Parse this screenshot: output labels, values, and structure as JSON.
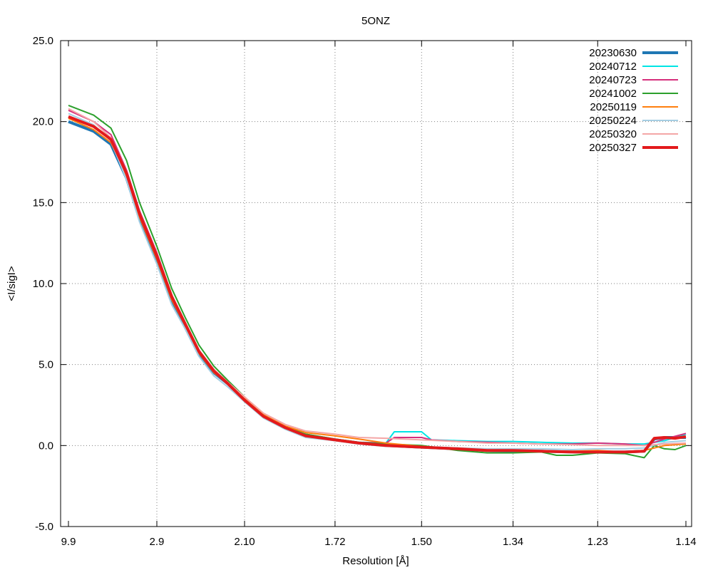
{
  "chart_data": {
    "type": "line",
    "title": "5ONZ",
    "xlabel": "Resolution [Å]",
    "ylabel": "<I/sigI>",
    "ylim": [
      -5.0,
      25.0
    ],
    "y_ticks": [
      "-5.0",
      "0.0",
      "5.0",
      "10.0",
      "15.0",
      "20.0",
      "25.0"
    ],
    "x_scale": "inverse-square resolution",
    "x_ticks": [
      "9.9",
      "2.9",
      "2.10",
      "1.72",
      "1.50",
      "1.34",
      "1.23",
      "1.14"
    ],
    "grid": true,
    "legend_position": "top-right",
    "series": [
      {
        "name": "20230630",
        "color": "#1f77b4",
        "width": 4,
        "x": [
          9.9,
          4.93,
          4.0,
          3.5,
          3.2,
          2.9,
          2.7,
          2.55,
          2.42,
          2.3,
          2.2,
          2.1,
          2.0,
          1.9,
          1.82,
          1.72,
          1.65,
          1.58,
          1.5,
          1.43,
          1.38,
          1.34,
          1.3,
          1.26,
          1.23,
          1.2,
          1.18,
          1.17,
          1.16,
          1.14
        ],
        "y": [
          20.0,
          19.4,
          18.6,
          16.5,
          14.0,
          11.5,
          9.0,
          7.3,
          5.6,
          4.5,
          3.8,
          2.8,
          1.8,
          1.1,
          0.6,
          0.35,
          0.15,
          0.0,
          -0.1,
          -0.2,
          -0.3,
          -0.35,
          -0.35,
          -0.4,
          -0.4,
          -0.4,
          -0.35,
          0.4,
          0.5,
          0.5
        ]
      },
      {
        "name": "20240712",
        "color": "#00e5e5",
        "width": 2,
        "x": [
          9.9,
          4.93,
          4.0,
          3.5,
          3.2,
          2.9,
          2.7,
          2.55,
          2.42,
          2.3,
          2.2,
          2.1,
          2.0,
          1.9,
          1.82,
          1.72,
          1.65,
          1.58,
          1.56,
          1.54,
          1.5,
          1.48,
          1.43,
          1.38,
          1.34,
          1.3,
          1.26,
          1.23,
          1.2,
          1.18,
          1.16,
          1.14
        ],
        "y": [
          20.3,
          19.7,
          18.9,
          16.7,
          14.2,
          11.6,
          9.1,
          7.4,
          5.7,
          4.5,
          3.8,
          2.8,
          1.8,
          1.1,
          0.6,
          0.4,
          0.2,
          0.15,
          0.85,
          0.85,
          0.85,
          0.35,
          0.3,
          0.25,
          0.25,
          0.2,
          0.15,
          0.15,
          0.1,
          0.1,
          0.3,
          0.7
        ]
      },
      {
        "name": "20240723",
        "color": "#d62f7c",
        "width": 2,
        "x": [
          9.9,
          4.93,
          4.0,
          3.5,
          3.2,
          2.9,
          2.7,
          2.55,
          2.42,
          2.3,
          2.2,
          2.1,
          2.0,
          1.9,
          1.82,
          1.72,
          1.65,
          1.58,
          1.56,
          1.54,
          1.5,
          1.48,
          1.43,
          1.38,
          1.34,
          1.3,
          1.26,
          1.23,
          1.2,
          1.18,
          1.16,
          1.14
        ],
        "y": [
          20.7,
          20.0,
          19.2,
          17.0,
          14.5,
          11.9,
          9.3,
          7.6,
          5.9,
          4.7,
          3.9,
          2.9,
          1.9,
          1.1,
          0.7,
          0.4,
          0.2,
          0.15,
          0.5,
          0.5,
          0.5,
          0.35,
          0.25,
          0.2,
          0.15,
          0.1,
          0.1,
          0.15,
          0.1,
          0.0,
          0.4,
          0.75
        ]
      },
      {
        "name": "20241002",
        "color": "#2ca02c",
        "width": 2,
        "x": [
          9.9,
          4.93,
          4.0,
          3.5,
          3.2,
          2.9,
          2.7,
          2.55,
          2.42,
          2.3,
          2.2,
          2.1,
          2.0,
          1.9,
          1.82,
          1.72,
          1.65,
          1.58,
          1.5,
          1.43,
          1.38,
          1.34,
          1.3,
          1.28,
          1.26,
          1.23,
          1.2,
          1.18,
          1.17,
          1.16,
          1.15,
          1.14
        ],
        "y": [
          21.0,
          20.4,
          19.6,
          17.6,
          15.0,
          12.3,
          9.7,
          7.9,
          6.2,
          4.9,
          4.0,
          3.0,
          1.9,
          1.15,
          0.7,
          0.4,
          0.2,
          0.1,
          0.0,
          -0.3,
          -0.45,
          -0.45,
          -0.4,
          -0.6,
          -0.6,
          -0.45,
          -0.5,
          -0.75,
          0.0,
          -0.2,
          -0.25,
          0.0
        ]
      },
      {
        "name": "20250119",
        "color": "#ff7f0e",
        "width": 2,
        "x": [
          9.9,
          4.93,
          4.0,
          3.5,
          3.2,
          2.9,
          2.7,
          2.55,
          2.42,
          2.3,
          2.2,
          2.1,
          2.0,
          1.9,
          1.82,
          1.72,
          1.65,
          1.58,
          1.5,
          1.43,
          1.38,
          1.34,
          1.3,
          1.26,
          1.23,
          1.2,
          1.18,
          1.16,
          1.14
        ],
        "y": [
          20.2,
          19.5,
          18.7,
          16.6,
          14.1,
          11.5,
          9.0,
          7.4,
          5.7,
          4.5,
          3.8,
          2.9,
          1.9,
          1.2,
          0.8,
          0.6,
          0.4,
          0.15,
          -0.05,
          -0.2,
          -0.3,
          -0.3,
          -0.35,
          -0.35,
          -0.3,
          -0.4,
          -0.3,
          0.0,
          0.1
        ]
      },
      {
        "name": "20250224",
        "color": "#a6cee3",
        "width": 2,
        "x": [
          9.9,
          4.93,
          4.0,
          3.5,
          3.2,
          2.9,
          2.7,
          2.55,
          2.42,
          2.3,
          2.2,
          2.1,
          2.0,
          1.9,
          1.82,
          1.72,
          1.65,
          1.58,
          1.5,
          1.43,
          1.38,
          1.34,
          1.3,
          1.26,
          1.23,
          1.2,
          1.18,
          1.16,
          1.14
        ],
        "y": [
          20.5,
          19.8,
          18.8,
          16.4,
          13.8,
          11.2,
          8.7,
          7.2,
          5.5,
          4.3,
          3.6,
          2.7,
          1.7,
          1.0,
          0.5,
          0.3,
          0.1,
          -0.05,
          -0.1,
          -0.15,
          -0.2,
          -0.2,
          -0.2,
          -0.25,
          -0.2,
          -0.2,
          -0.15,
          0.2,
          0.3
        ]
      },
      {
        "name": "20250320",
        "color": "#f4a6a6",
        "width": 2,
        "x": [
          9.9,
          4.93,
          4.0,
          3.5,
          3.2,
          2.9,
          2.7,
          2.55,
          2.42,
          2.3,
          2.2,
          2.1,
          2.0,
          1.9,
          1.82,
          1.72,
          1.65,
          1.58,
          1.5,
          1.43,
          1.38,
          1.34,
          1.3,
          1.26,
          1.23,
          1.2,
          1.18,
          1.16,
          1.14
        ],
        "y": [
          20.8,
          20.0,
          19.0,
          16.9,
          14.4,
          11.8,
          9.3,
          7.6,
          5.9,
          4.7,
          3.9,
          3.0,
          2.0,
          1.3,
          0.9,
          0.7,
          0.5,
          0.45,
          0.35,
          0.25,
          0.15,
          0.15,
          0.1,
          0.05,
          0.0,
          0.0,
          0.0,
          0.1,
          0.15
        ]
      },
      {
        "name": "20250327",
        "color": "#e31a1c",
        "width": 4,
        "x": [
          9.9,
          4.93,
          4.0,
          3.5,
          3.2,
          2.9,
          2.7,
          2.55,
          2.42,
          2.3,
          2.2,
          2.1,
          2.0,
          1.9,
          1.82,
          1.72,
          1.65,
          1.58,
          1.5,
          1.43,
          1.38,
          1.34,
          1.3,
          1.26,
          1.23,
          1.2,
          1.18,
          1.17,
          1.16,
          1.15,
          1.14
        ],
        "y": [
          20.3,
          19.7,
          18.9,
          16.8,
          14.3,
          11.7,
          9.2,
          7.5,
          5.8,
          4.6,
          3.8,
          2.8,
          1.8,
          1.1,
          0.6,
          0.35,
          0.15,
          0.0,
          -0.1,
          -0.2,
          -0.3,
          -0.3,
          -0.35,
          -0.4,
          -0.4,
          -0.4,
          -0.35,
          0.45,
          0.5,
          0.45,
          0.55
        ]
      }
    ]
  }
}
